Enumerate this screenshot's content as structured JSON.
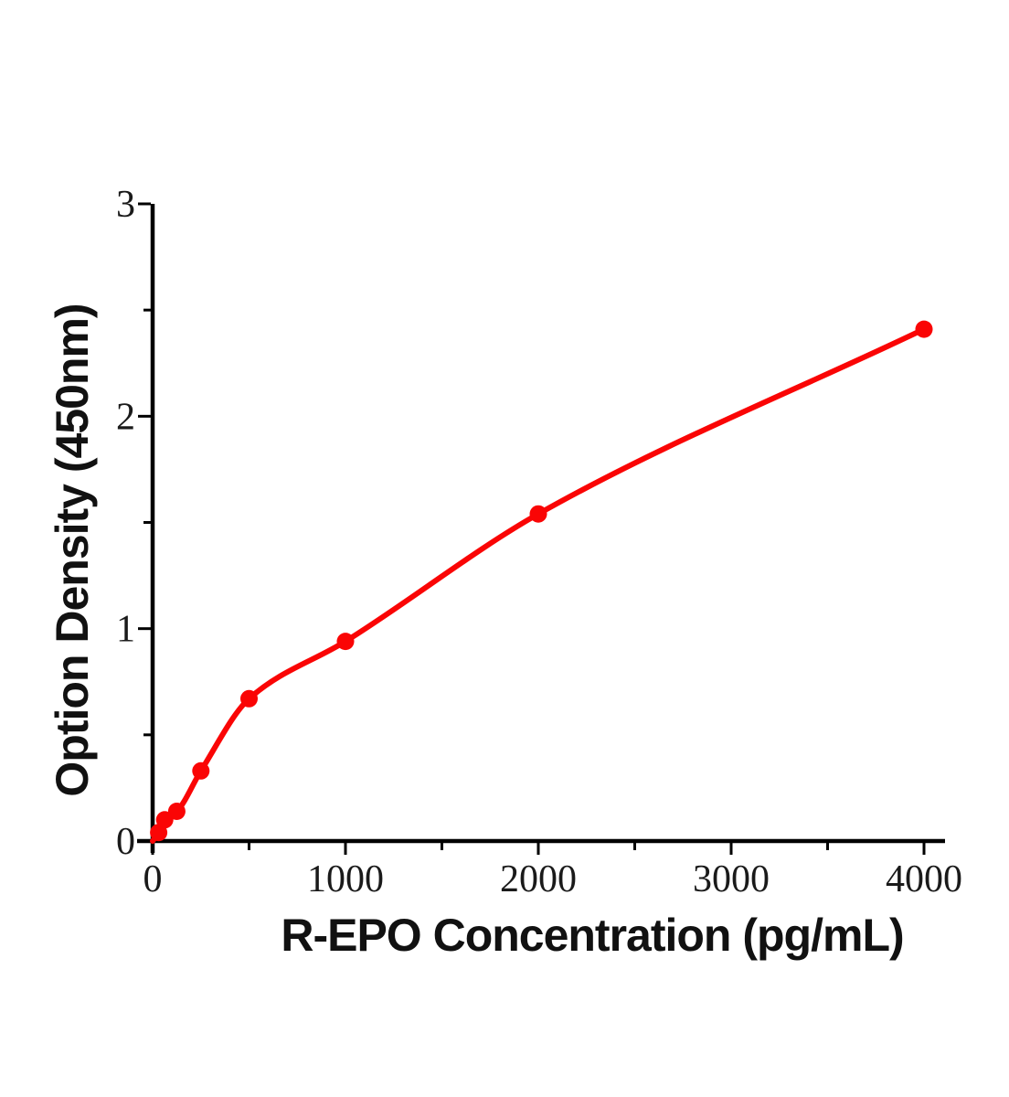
{
  "chart_data": {
    "type": "scatter",
    "subtype": "standard-curve-with-smooth-fit",
    "title": "",
    "xlabel": "R-EPO Concentration (pg/mL)",
    "ylabel": "Option Density (450nm)",
    "x": [
      31.25,
      62.5,
      125,
      250,
      500,
      1000,
      2000,
      4000
    ],
    "y": [
      0.04,
      0.1,
      0.14,
      0.33,
      0.67,
      0.94,
      1.54,
      2.41
    ],
    "curve_start": {
      "x": 0,
      "y": 0
    },
    "xlim": [
      0,
      4110
    ],
    "ylim": [
      0,
      3
    ],
    "x_major_ticks": [
      0,
      1000,
      2000,
      3000,
      4000
    ],
    "x_minor_ticks": [
      500,
      1500,
      2500,
      3500
    ],
    "y_major_ticks": [
      0,
      1,
      2,
      3
    ],
    "y_minor_ticks": [
      0.5,
      1.5,
      2.5
    ],
    "x_tick_labels": [
      "0",
      "1000",
      "2000",
      "3000",
      "4000"
    ],
    "y_tick_labels": [
      "0",
      "1",
      "2",
      "3"
    ],
    "grid": false,
    "legend": "none",
    "colors": {
      "series": "#fa0505",
      "axis": "#000000",
      "tick_text": "#1a1a1a",
      "background": "#ffffff"
    }
  }
}
